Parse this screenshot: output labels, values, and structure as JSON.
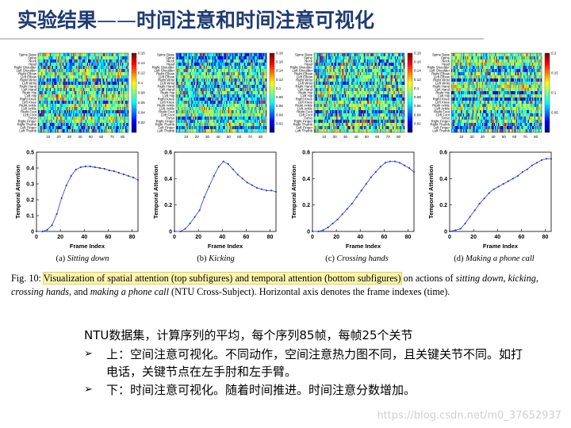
{
  "header": {
    "title_main": "实验结果",
    "title_dash": "——",
    "title_sub": "时间注意和时间注意可视化"
  },
  "joints": [
    "Spine Base",
    "Spine",
    "Neck",
    "Head",
    "Right Shoulder",
    "Left Shoulder",
    "Right Elbow",
    "Left Elbow",
    "Right Wrist",
    "Left Wrist",
    "Right Hand",
    "Left Hand",
    "Right Hip",
    "Left Hip",
    "Right Knee",
    "Left Knee",
    "Right Ankle",
    "Left Ankle",
    "Right Foot",
    "Left Foot",
    "Torso",
    "Right Finger",
    "Right Thumb",
    "Left Finger",
    "Left Thumb"
  ],
  "chart_data": [
    {
      "type": "line",
      "subcaption_label": "(a)",
      "subcaption_name": "Sitting down",
      "xlabel": "Frame Index",
      "ylabel": "Temporal Attention",
      "xlim": [
        0,
        85
      ],
      "ylim": [
        0,
        0.5
      ],
      "xticks": [
        "0",
        "20",
        "40",
        "60",
        "80"
      ],
      "yticks": [
        "0",
        "0.1",
        "0.2",
        "0.3",
        "0.4",
        "0.5"
      ],
      "x": [
        0,
        5,
        9,
        13,
        17,
        21,
        25,
        29,
        33,
        37,
        41,
        45,
        49,
        53,
        57,
        61,
        65,
        69,
        73,
        77,
        81,
        85
      ],
      "y": [
        0,
        0,
        0.01,
        0.04,
        0.11,
        0.21,
        0.29,
        0.35,
        0.39,
        0.405,
        0.41,
        0.41,
        0.405,
        0.4,
        0.395,
        0.385,
        0.38,
        0.37,
        0.36,
        0.35,
        0.34,
        0.325
      ],
      "heatmap": {
        "x_ticks": [
          "10",
          "20",
          "30",
          "40",
          "50",
          "60",
          "70",
          "80"
        ],
        "colorbar_ticks": [
          "0.16",
          "0.14",
          "0.12",
          "0.1",
          "0.08",
          "0.06",
          "0.04",
          "0.02"
        ],
        "vmin": 0,
        "vmax": 0.16
      }
    },
    {
      "type": "line",
      "subcaption_label": "(b)",
      "subcaption_name": "Kicking",
      "xlabel": "Frame Index",
      "ylabel": "Temporal Attention",
      "xlim": [
        0,
        85
      ],
      "ylim": [
        0,
        0.6
      ],
      "xticks": [
        "0",
        "20",
        "40",
        "60",
        "80"
      ],
      "yticks": [
        "0",
        "0.2",
        "0.4",
        "0.6"
      ],
      "x": [
        0,
        5,
        9,
        13,
        17,
        21,
        25,
        29,
        33,
        37,
        41,
        45,
        49,
        53,
        57,
        61,
        65,
        69,
        73,
        77,
        81,
        85
      ],
      "y": [
        0,
        0,
        0.02,
        0.06,
        0.11,
        0.16,
        0.26,
        0.34,
        0.42,
        0.49,
        0.53,
        0.51,
        0.47,
        0.43,
        0.4,
        0.37,
        0.35,
        0.33,
        0.32,
        0.31,
        0.31,
        0.3
      ],
      "heatmap": {
        "x_ticks": [
          "10",
          "20",
          "30",
          "40",
          "50",
          "60",
          "70",
          "80"
        ],
        "colorbar_ticks": [
          "0.18",
          "0.16",
          "0.14",
          "0.12",
          "0.1",
          "0.08",
          "0.06",
          "0.04",
          "0.02"
        ],
        "vmin": 0,
        "vmax": 0.18
      }
    },
    {
      "type": "line",
      "subcaption_label": "(c)",
      "subcaption_name": "Crossing hands",
      "xlabel": "Frame Index",
      "ylabel": "Temporal Attention",
      "xlim": [
        0,
        85
      ],
      "ylim": [
        0,
        0.6
      ],
      "xticks": [
        "0",
        "20",
        "40",
        "60",
        "80"
      ],
      "yticks": [
        "0",
        "0.2",
        "0.4",
        "0.6"
      ],
      "x": [
        0,
        5,
        9,
        13,
        17,
        21,
        25,
        29,
        33,
        37,
        41,
        45,
        49,
        53,
        57,
        61,
        65,
        69,
        73,
        77,
        81,
        85
      ],
      "y": [
        0,
        0,
        0.01,
        0.03,
        0.06,
        0.09,
        0.13,
        0.17,
        0.21,
        0.26,
        0.31,
        0.36,
        0.41,
        0.45,
        0.49,
        0.52,
        0.53,
        0.53,
        0.52,
        0.5,
        0.48,
        0.45
      ],
      "heatmap": {
        "x_ticks": [
          "10",
          "20",
          "30",
          "40",
          "50",
          "60",
          "70",
          "80"
        ],
        "colorbar_ticks": [
          "0.18",
          "0.16",
          "0.14",
          "0.12",
          "0.1",
          "0.08",
          "0.06",
          "0.04",
          "0.02"
        ],
        "vmin": 0,
        "vmax": 0.18
      }
    },
    {
      "type": "line",
      "subcaption_label": "(d)",
      "subcaption_name": "Making a phone call",
      "xlabel": "Frame Index",
      "ylabel": "Temporal Attention",
      "xlim": [
        0,
        85
      ],
      "ylim": [
        0,
        0.6
      ],
      "xticks": [
        "0",
        "20",
        "40",
        "60",
        "80"
      ],
      "yticks": [
        "0",
        "0.2",
        "0.4",
        "0.6"
      ],
      "x": [
        0,
        5,
        9,
        13,
        17,
        21,
        25,
        29,
        33,
        37,
        41,
        45,
        49,
        53,
        57,
        61,
        65,
        69,
        73,
        77,
        81,
        85
      ],
      "y": [
        0,
        0.01,
        0.02,
        0.06,
        0.11,
        0.16,
        0.21,
        0.25,
        0.29,
        0.32,
        0.34,
        0.36,
        0.38,
        0.4,
        0.42,
        0.45,
        0.47,
        0.5,
        0.52,
        0.54,
        0.55,
        0.55
      ],
      "heatmap": {
        "x_ticks": [
          "10",
          "20",
          "30",
          "40",
          "50",
          "60",
          "70",
          "80"
        ],
        "colorbar_ticks": [
          "0.2",
          "0.15",
          "0.1",
          "0.05"
        ],
        "vmin": 0,
        "vmax": 0.2
      }
    }
  ],
  "figure_caption": {
    "label": "Fig. 10: ",
    "highlighted": "Visualization of spatial attention (top subfigures) and temporal attention (bottom subfigures)",
    "t1": " on actions of ",
    "a1": "sitting down",
    "t2": ", ",
    "a2": "kicking",
    "t3": ", ",
    "a3": "crossing hands",
    "t4": ", and ",
    "a4": "making a phone call",
    "t5": " (NTU Cross-Subject). Horizontal axis denotes the frame indexes (time)."
  },
  "notes": {
    "lead": "NTU数据集，计算序列的平均，每个序列85帧，每帧25个关节",
    "bullet_symbol": "➢",
    "bullets": [
      "上：空间注意可视化。不同动作，空间注意热力图不同，且关键关节不同。如打电话，关键节点在左手肘和左手臂。",
      "下：时间注意可视化。随着时间推进。时间注意分数增加。"
    ]
  },
  "watermark": "https://blog.csdn.net/m0_37652937"
}
